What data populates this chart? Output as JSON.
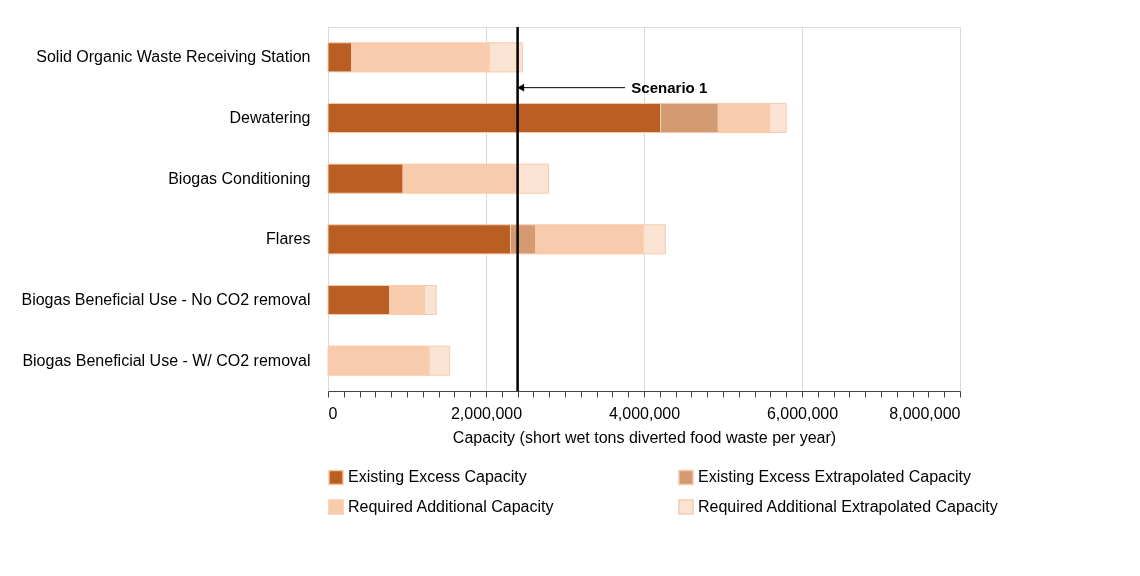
{
  "chart_data": {
    "type": "bar",
    "orientation": "horizontal",
    "stacked": true,
    "categories": [
      "Solid Organic Waste Receiving Station",
      "Dewatering",
      "Biogas Conditioning",
      "Flares",
      "Biogas Beneficial Use - No CO2 removal",
      "Biogas Beneficial Use - W/ CO2 removal"
    ],
    "series": [
      {
        "name": "Existing Excess Capacity",
        "color": "#b95f23",
        "values": [
          300000,
          4210000,
          950000,
          2310000,
          780000,
          null
        ]
      },
      {
        "name": "Existing Excess Extrapolated Capacity",
        "color": "#d49a72",
        "values": [
          null,
          730000,
          null,
          320000,
          null,
          null
        ]
      },
      {
        "name": "Required Additional Capacity",
        "color": "#f7cbac",
        "values": [
          1740000,
          650000,
          1430000,
          1360000,
          440000,
          1280000
        ]
      },
      {
        "name": "Required Additional Extrapolated  Capacity",
        "color": "#fbe3d3",
        "values": [
          420000,
          210000,
          410000,
          280000,
          150000,
          260000
        ]
      }
    ],
    "xlabel": "Capacity (short wet tons diverted food waste per year)",
    "xlim": [
      0,
      8000000
    ],
    "xticks": [
      {
        "value": 0,
        "label": "0"
      },
      {
        "value": 200000,
        "label": null
      },
      {
        "value": 400000,
        "label": null
      },
      {
        "value": 600000,
        "label": null
      },
      {
        "value": 800000,
        "label": null
      },
      {
        "value": 1000000,
        "label": null
      },
      {
        "value": 1200000,
        "label": null
      },
      {
        "value": 1400000,
        "label": null
      },
      {
        "value": 1600000,
        "label": null
      },
      {
        "value": 1800000,
        "label": null
      },
      {
        "value": 2000000,
        "label": "2,000,000"
      },
      {
        "value": 2200000,
        "label": null
      },
      {
        "value": 2400000,
        "label": null
      },
      {
        "value": 2600000,
        "label": null
      },
      {
        "value": 2800000,
        "label": null
      },
      {
        "value": 3000000,
        "label": null
      },
      {
        "value": 3200000,
        "label": null
      },
      {
        "value": 3400000,
        "label": null
      },
      {
        "value": 3600000,
        "label": null
      },
      {
        "value": 3800000,
        "label": null
      },
      {
        "value": 4000000,
        "label": "4,000,000"
      },
      {
        "value": 4200000,
        "label": null
      },
      {
        "value": 4400000,
        "label": null
      },
      {
        "value": 4600000,
        "label": null
      },
      {
        "value": 4800000,
        "label": null
      },
      {
        "value": 5000000,
        "label": null
      },
      {
        "value": 5200000,
        "label": null
      },
      {
        "value": 5400000,
        "label": null
      },
      {
        "value": 5600000,
        "label": null
      },
      {
        "value": 5800000,
        "label": null
      },
      {
        "value": 6000000,
        "label": "6,000,000"
      },
      {
        "value": 6200000,
        "label": null
      },
      {
        "value": 6400000,
        "label": null
      },
      {
        "value": 6600000,
        "label": null
      },
      {
        "value": 6800000,
        "label": null
      },
      {
        "value": 7000000,
        "label": null
      },
      {
        "value": 7200000,
        "label": null
      },
      {
        "value": 7400000,
        "label": null
      },
      {
        "value": 7600000,
        "label": null
      },
      {
        "value": 7800000,
        "label": null
      },
      {
        "value": 8000000,
        "label": "8,000,000"
      }
    ],
    "grid": "x",
    "legend": "bottom",
    "ref_lines": [
      {
        "axis": "x",
        "value": 2400000,
        "label": "Scenario 1",
        "color": "#000000"
      }
    ]
  }
}
